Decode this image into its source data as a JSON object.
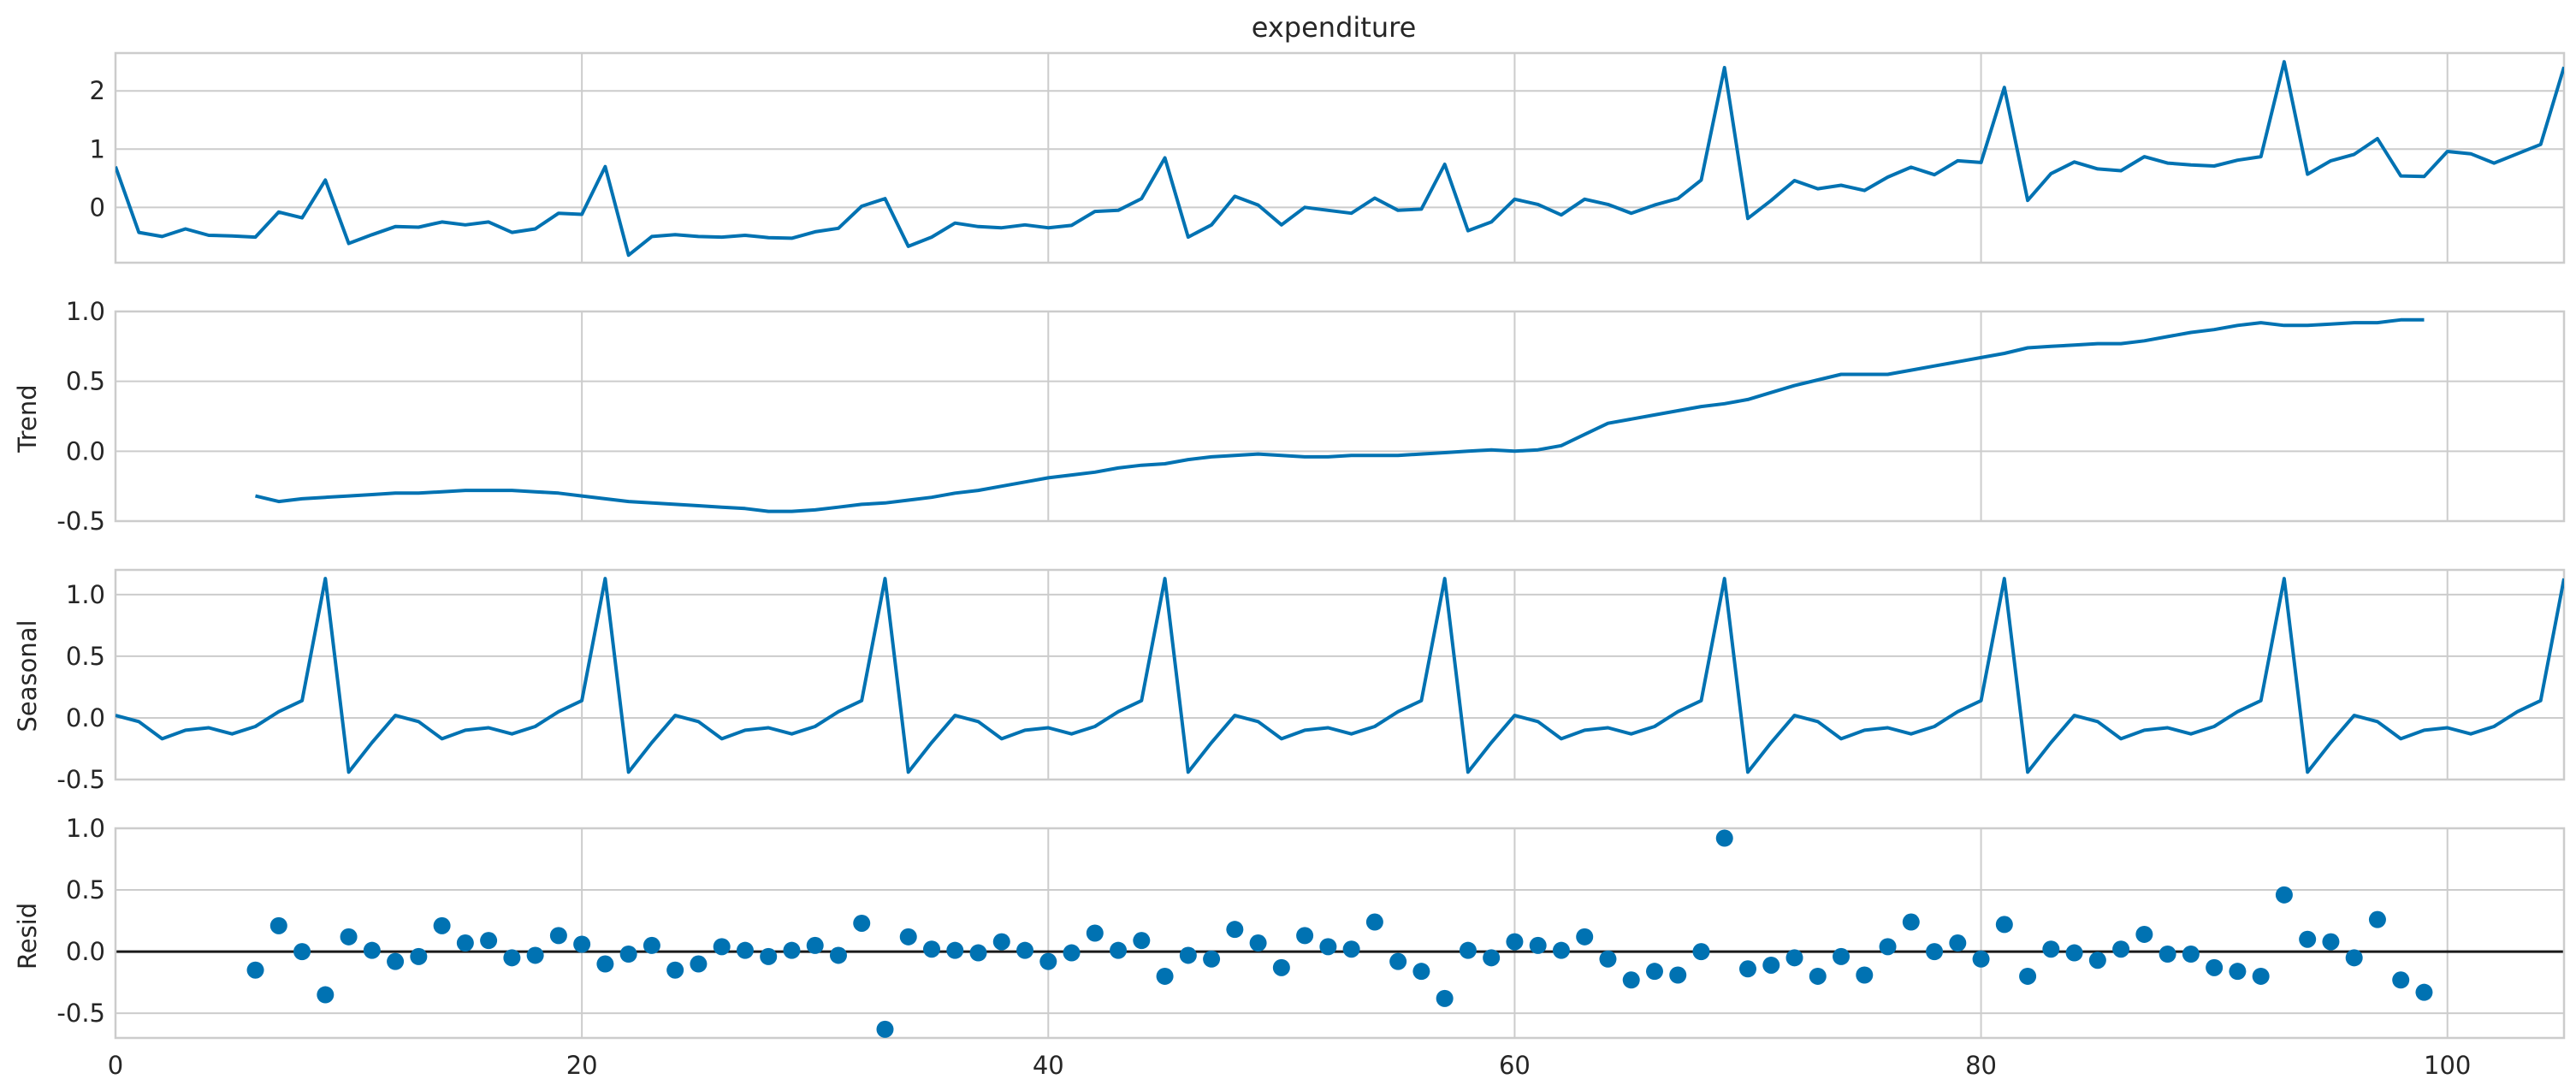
{
  "chart_data": [
    {
      "type": "line",
      "title": "expenditure",
      "ylabel": "",
      "xlim": [
        0,
        105
      ],
      "ylim": [
        -0.95,
        2.65
      ],
      "yticks": [
        0,
        1,
        2
      ],
      "grid": true,
      "color": "#0072B2",
      "x": [
        0,
        1,
        2,
        3,
        4,
        5,
        6,
        7,
        8,
        9,
        10,
        11,
        12,
        13,
        14,
        15,
        16,
        17,
        18,
        19,
        20,
        21,
        22,
        23,
        24,
        25,
        26,
        27,
        28,
        29,
        30,
        31,
        32,
        33,
        34,
        35,
        36,
        37,
        38,
        39,
        40,
        41,
        42,
        43,
        44,
        45,
        46,
        47,
        48,
        49,
        50,
        51,
        52,
        53,
        54,
        55,
        56,
        57,
        58,
        59,
        60,
        61,
        62,
        63,
        64,
        65,
        66,
        67,
        68,
        69,
        70,
        71,
        72,
        73,
        74,
        75,
        76,
        77,
        78,
        79,
        80,
        81,
        82,
        83,
        84,
        85,
        86,
        87,
        88,
        89,
        90,
        91,
        92,
        93,
        94,
        95,
        96,
        97,
        98,
        99,
        100,
        101,
        102,
        103,
        104,
        105
      ],
      "values": [
        0.7,
        -0.43,
        -0.5,
        -0.37,
        -0.48,
        -0.49,
        -0.51,
        -0.08,
        -0.18,
        0.47,
        -0.62,
        -0.47,
        -0.33,
        -0.34,
        -0.25,
        -0.3,
        -0.25,
        -0.43,
        -0.37,
        -0.1,
        -0.12,
        0.7,
        -0.82,
        -0.5,
        -0.47,
        -0.5,
        -0.51,
        -0.48,
        -0.52,
        -0.53,
        -0.42,
        -0.36,
        0.02,
        0.15,
        -0.67,
        -0.51,
        -0.27,
        -0.33,
        -0.35,
        -0.3,
        -0.35,
        -0.31,
        -0.07,
        -0.05,
        0.15,
        0.85,
        -0.51,
        -0.3,
        0.19,
        0.04,
        -0.3,
        0.0,
        -0.05,
        -0.1,
        0.16,
        -0.05,
        -0.03,
        0.74,
        -0.4,
        -0.25,
        0.14,
        0.05,
        -0.13,
        0.14,
        0.05,
        -0.1,
        0.04,
        0.15,
        0.47,
        2.4,
        -0.19,
        0.12,
        0.46,
        0.32,
        0.38,
        0.29,
        0.52,
        0.69,
        0.56,
        0.8,
        0.77,
        2.06,
        0.12,
        0.58,
        0.78,
        0.66,
        0.63,
        0.87,
        0.76,
        0.73,
        0.71,
        0.81,
        0.87,
        2.5,
        0.57,
        0.8,
        0.91,
        1.18,
        0.54,
        0.53,
        0.96,
        0.92,
        0.76,
        0.92,
        1.08,
        2.41
      ]
    },
    {
      "type": "line",
      "title": "",
      "ylabel": "Trend",
      "xlim": [
        0,
        105
      ],
      "ylim": [
        -0.5,
        1.0
      ],
      "yticks": [
        -0.5,
        0.0,
        0.5,
        1.0
      ],
      "grid": true,
      "color": "#0072B2",
      "x": [
        6,
        7,
        8,
        9,
        10,
        11,
        12,
        13,
        14,
        15,
        16,
        17,
        18,
        19,
        20,
        21,
        22,
        23,
        24,
        25,
        26,
        27,
        28,
        29,
        30,
        31,
        32,
        33,
        34,
        35,
        36,
        37,
        38,
        39,
        40,
        41,
        42,
        43,
        44,
        45,
        46,
        47,
        48,
        49,
        50,
        51,
        52,
        53,
        54,
        55,
        56,
        57,
        58,
        59,
        60,
        61,
        62,
        63,
        64,
        65,
        66,
        67,
        68,
        69,
        70,
        71,
        72,
        73,
        74,
        75,
        76,
        77,
        78,
        79,
        80,
        81,
        82,
        83,
        84,
        85,
        86,
        87,
        88,
        89,
        90,
        91,
        92,
        93,
        94,
        95,
        96,
        97,
        98,
        99
      ],
      "values": [
        -0.32,
        -0.36,
        -0.34,
        -0.33,
        -0.32,
        -0.31,
        -0.3,
        -0.3,
        -0.29,
        -0.28,
        -0.28,
        -0.28,
        -0.29,
        -0.3,
        -0.32,
        -0.34,
        -0.36,
        -0.37,
        -0.38,
        -0.39,
        -0.4,
        -0.41,
        -0.43,
        -0.43,
        -0.42,
        -0.4,
        -0.38,
        -0.37,
        -0.35,
        -0.33,
        -0.3,
        -0.28,
        -0.25,
        -0.22,
        -0.19,
        -0.17,
        -0.15,
        -0.12,
        -0.1,
        -0.09,
        -0.06,
        -0.04,
        -0.03,
        -0.02,
        -0.03,
        -0.04,
        -0.04,
        -0.03,
        -0.03,
        -0.03,
        -0.02,
        -0.01,
        0.0,
        0.01,
        0.0,
        0.01,
        0.04,
        0.12,
        0.2,
        0.23,
        0.26,
        0.29,
        0.32,
        0.34,
        0.37,
        0.42,
        0.47,
        0.51,
        0.55,
        0.55,
        0.55,
        0.58,
        0.61,
        0.64,
        0.67,
        0.7,
        0.74,
        0.75,
        0.76,
        0.77,
        0.77,
        0.79,
        0.82,
        0.85,
        0.87,
        0.9,
        0.92,
        0.9,
        0.9,
        0.91,
        0.92,
        0.92,
        0.94,
        0.94
      ]
    },
    {
      "type": "line",
      "title": "",
      "ylabel": "Seasonal",
      "xlim": [
        0,
        105
      ],
      "ylim": [
        -0.5,
        1.2
      ],
      "yticks": [
        -0.5,
        0.0,
        0.5,
        1.0
      ],
      "grid": true,
      "color": "#0072B2",
      "period": 12,
      "pattern": [
        0.02,
        -0.03,
        -0.17,
        -0.1,
        -0.08,
        -0.13,
        -0.07,
        0.05,
        0.14,
        1.13,
        -0.44,
        -0.2
      ],
      "x_end": 105
    },
    {
      "type": "scatter",
      "title": "",
      "ylabel": "Resid",
      "xlim": [
        0,
        105
      ],
      "ylim": [
        -0.7,
        1.0
      ],
      "yticks": [
        -0.5,
        0.0,
        0.5,
        1.0
      ],
      "xticks": [
        0,
        20,
        40,
        60,
        80,
        100
      ],
      "grid": true,
      "hline": 0,
      "color": "#0072B2",
      "x": [
        6,
        7,
        8,
        9,
        10,
        11,
        12,
        13,
        14,
        15,
        16,
        17,
        18,
        19,
        20,
        21,
        22,
        23,
        24,
        25,
        26,
        27,
        28,
        29,
        30,
        31,
        32,
        33,
        34,
        35,
        36,
        37,
        38,
        39,
        40,
        41,
        42,
        43,
        44,
        45,
        46,
        47,
        48,
        49,
        50,
        51,
        52,
        53,
        54,
        55,
        56,
        57,
        58,
        59,
        60,
        61,
        62,
        63,
        64,
        65,
        66,
        67,
        68,
        69,
        70,
        71,
        72,
        73,
        74,
        75,
        76,
        77,
        78,
        79,
        80,
        81,
        82,
        83,
        84,
        85,
        86,
        87,
        88,
        89,
        90,
        91,
        92,
        93,
        94,
        95,
        96,
        97,
        98,
        99
      ],
      "values": [
        -0.15,
        0.21,
        0.0,
        -0.35,
        0.12,
        0.01,
        -0.08,
        -0.04,
        0.21,
        0.07,
        0.09,
        -0.05,
        -0.03,
        0.13,
        0.06,
        -0.1,
        -0.02,
        0.05,
        -0.15,
        -0.1,
        0.04,
        0.01,
        -0.04,
        0.01,
        0.05,
        -0.03,
        0.23,
        -0.63,
        0.12,
        0.02,
        0.01,
        -0.01,
        0.08,
        0.01,
        -0.08,
        -0.01,
        0.15,
        0.01,
        0.09,
        -0.2,
        -0.03,
        -0.06,
        0.18,
        0.07,
        -0.13,
        0.13,
        0.04,
        0.02,
        0.24,
        -0.08,
        -0.16,
        -0.38,
        0.01,
        -0.05,
        0.08,
        0.05,
        0.01,
        0.12,
        -0.06,
        -0.23,
        -0.16,
        -0.19,
        0.0,
        0.92,
        -0.14,
        -0.11,
        -0.05,
        -0.2,
        -0.04,
        -0.19,
        0.04,
        0.24,
        0.0,
        0.07,
        -0.06,
        0.22,
        -0.2,
        0.02,
        -0.01,
        -0.07,
        0.02,
        0.14,
        -0.02,
        -0.02,
        -0.13,
        -0.16,
        -0.2,
        0.46,
        0.1,
        0.08,
        -0.05,
        0.26,
        -0.23,
        -0.33
      ]
    }
  ]
}
